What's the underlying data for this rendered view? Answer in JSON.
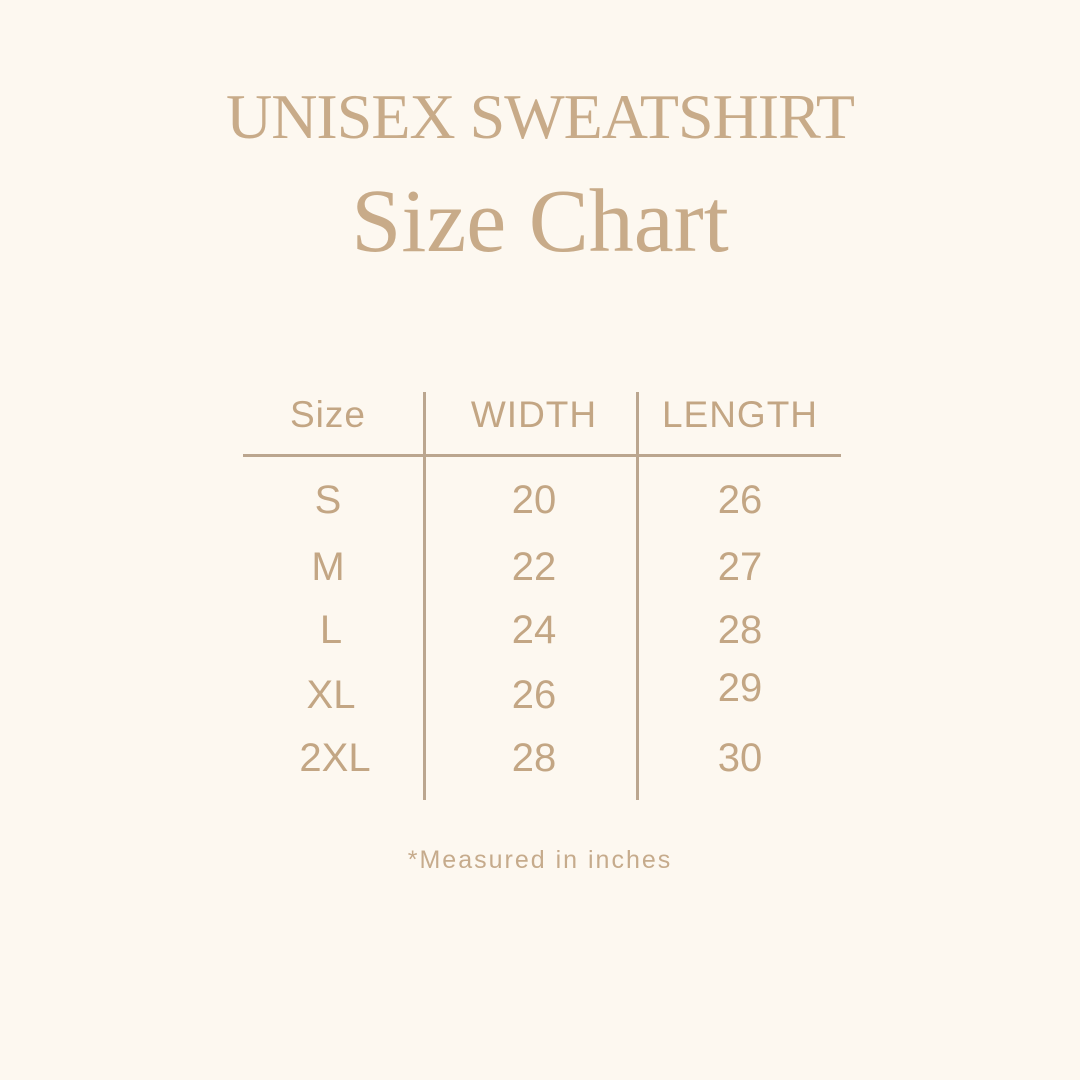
{
  "title_line1": "UNISEX SWEATSHIRT",
  "title_line2": "Size Chart",
  "table": {
    "headers": [
      "Size",
      "WIDTH",
      "LENGTH"
    ],
    "rows": [
      [
        "S",
        "20",
        "26"
      ],
      [
        "M",
        "22",
        "27"
      ],
      [
        "L",
        "24",
        "28"
      ],
      [
        "XL",
        "26",
        "29"
      ],
      [
        "2XL",
        "28",
        "30"
      ]
    ]
  },
  "footnote": "*Measured in inches",
  "colors": {
    "background": "#fdf8f0",
    "text": "#c6a987",
    "lines": "#bba68f"
  }
}
